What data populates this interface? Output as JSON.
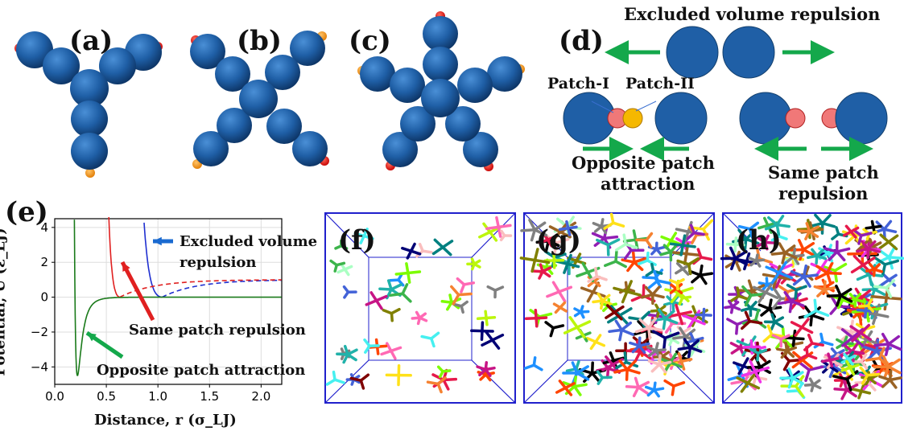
{
  "panels": {
    "a": "(a)",
    "b": "(b)",
    "c": "(c)",
    "d": "(d)",
    "e": "(e)",
    "f": "(f)",
    "g": "(g)",
    "h": "(h)"
  },
  "colors": {
    "bead": "#1f5fa6",
    "patch_red": "#e01010",
    "patch_orange": "#f39c1a",
    "patch_pink": "#f07878",
    "patch_yellow": "#f5b800",
    "arrow_green": "#14a84b",
    "box_blue": "#2020cc"
  },
  "panel_d": {
    "excluded": "Excluded volume repulsion",
    "patch1": "Patch-I",
    "patch2": "Patch-II",
    "opposite_line1": "Opposite patch",
    "opposite_line2": "attraction",
    "same_line1": "Same patch",
    "same_line2": "repulsion"
  },
  "chart_data": {
    "type": "line",
    "xlabel": "Distance, r (σ_LJ)",
    "ylabel": "Potential, U (ε_LJ)",
    "xlim": [
      0.0,
      2.2
    ],
    "ylim": [
      -5,
      4.5
    ],
    "xticks": [
      "0.0",
      "0.5",
      "1.0",
      "1.5",
      "2.0"
    ],
    "yticks": [
      "4",
      "2",
      "0",
      "−2",
      "−4"
    ],
    "grid": true,
    "annotations": {
      "excluded_line1": "Excluded volume",
      "excluded_line2": "repulsion",
      "same": "Same patch repulsion",
      "opposite": "Opposite patch attraction"
    },
    "series": [
      {
        "color": "#1f2fd0",
        "style": "solid+dashed",
        "min_x": 1.0,
        "x_zero": 0.98
      },
      {
        "color": "#e02020",
        "style": "solid+dashed",
        "x_zero": 0.62
      },
      {
        "color": "#1a7a1a",
        "style": "solid",
        "x_min": 0.22,
        "y_min": -4.5
      }
    ]
  }
}
